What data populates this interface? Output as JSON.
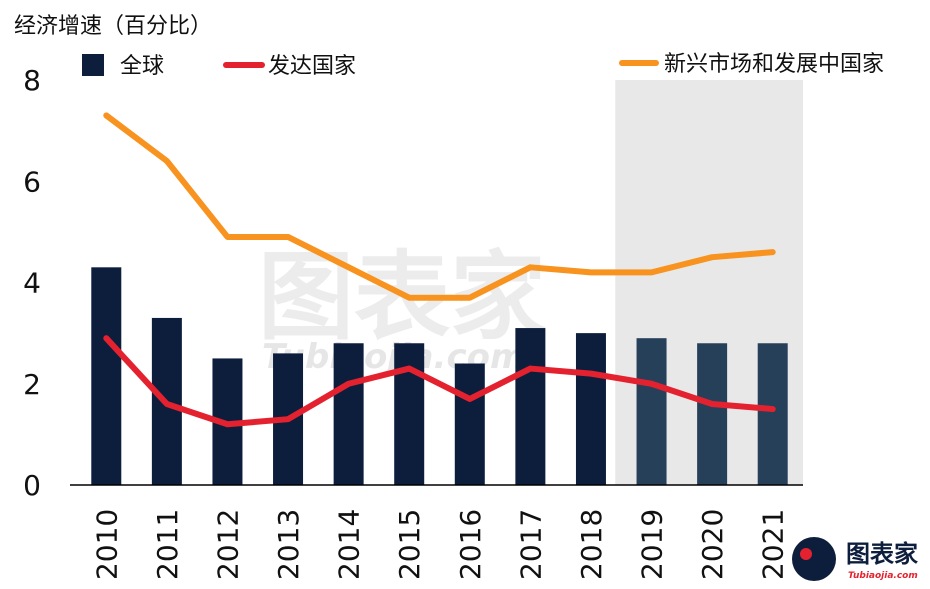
{
  "chart_data": {
    "type": "bar",
    "title": "经济增速（百分比）",
    "categories": [
      "2010",
      "2011",
      "2012",
      "2013",
      "2014",
      "2015",
      "2016",
      "2017",
      "2018",
      "2019",
      "2020",
      "2021"
    ],
    "ylim": [
      0,
      8
    ],
    "yticks": [
      0,
      2,
      4,
      6,
      8
    ],
    "forecast_from": "2019",
    "series": [
      {
        "name": "全球",
        "type": "bar",
        "color": "#0d1e3d",
        "forecast_color": "#27405a",
        "values": [
          4.3,
          3.3,
          2.5,
          2.6,
          2.8,
          2.8,
          2.4,
          3.1,
          3.0,
          2.9,
          2.8,
          2.8
        ]
      },
      {
        "name": "发达国家",
        "type": "line",
        "color": "#e4222f",
        "values": [
          2.9,
          1.6,
          1.2,
          1.3,
          2.0,
          2.3,
          1.7,
          2.3,
          2.2,
          2.0,
          1.6,
          1.5
        ]
      },
      {
        "name": "新兴市场和发展中国家",
        "type": "line",
        "color": "#f7931e",
        "values": [
          7.3,
          6.4,
          4.9,
          4.9,
          4.3,
          3.7,
          3.7,
          4.3,
          4.2,
          4.2,
          4.5,
          4.6
        ]
      }
    ],
    "legend_position": "top",
    "grid": false
  },
  "watermark": {
    "main": "图表家",
    "sub": "Tubiaojia.com"
  },
  "logo": {
    "text": "图表家",
    "sub": "Tubiaojia.com"
  }
}
